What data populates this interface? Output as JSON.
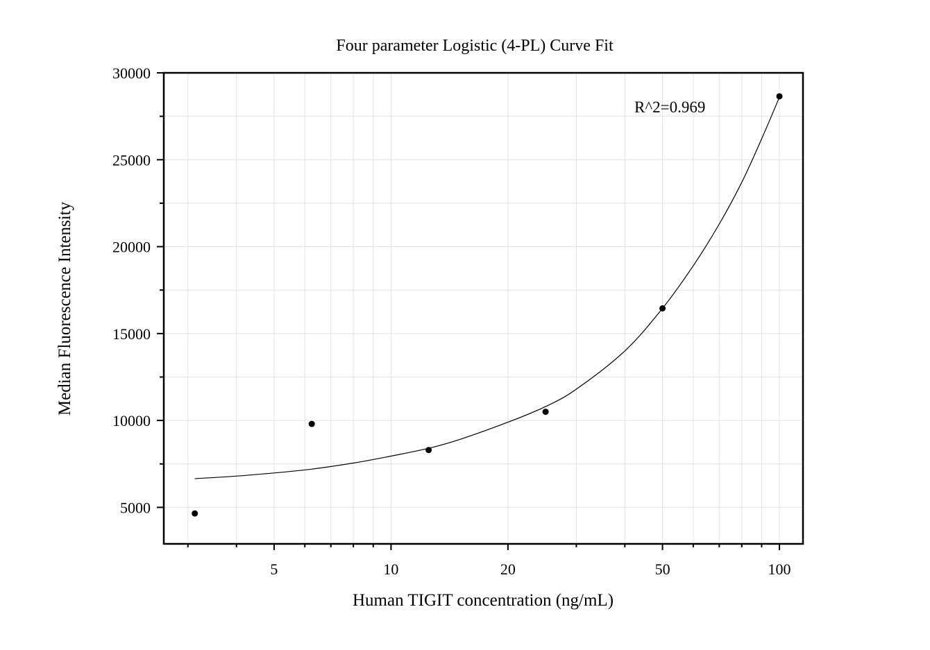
{
  "chart_data": {
    "type": "scatter",
    "title": "Four parameter Logistic (4-PL) Curve Fit",
    "xlabel": "Human TIGIT concentration (ng/mL)",
    "ylabel": "Median Fluorescence Intensity",
    "x_scale": "log",
    "xlim": [
      2.6,
      115
    ],
    "ylim": [
      2900,
      30000
    ],
    "x_major_ticks": [
      5,
      10,
      20,
      50,
      100
    ],
    "x_minor_ticks": [
      3,
      4,
      6,
      7,
      8,
      9,
      30,
      40,
      60,
      70,
      80,
      90
    ],
    "y_major_ticks": [
      5000,
      10000,
      15000,
      20000,
      25000,
      30000
    ],
    "y_minor_ticks": [
      7500,
      12500,
      17500,
      22500,
      27500
    ],
    "x_tick_labels": [
      "5",
      "10",
      "20",
      "50",
      "100"
    ],
    "y_tick_labels": [
      "5000",
      "10000",
      "15000",
      "20000",
      "25000",
      "30000"
    ],
    "grid": true,
    "annotation": "R^2=0.969",
    "points": {
      "x": [
        3.125,
        6.25,
        12.5,
        25,
        50,
        100
      ],
      "y": [
        4650,
        9800,
        8300,
        10500,
        16450,
        28650
      ]
    },
    "fit_curve": {
      "x": [
        3.125,
        4,
        5,
        6.25,
        8,
        10,
        12.5,
        15,
        20,
        25,
        30,
        40,
        50,
        60,
        70,
        80,
        90,
        100
      ],
      "y": [
        6650,
        6800,
        6980,
        7200,
        7550,
        7950,
        8400,
        8900,
        9900,
        10800,
        11800,
        14000,
        16450,
        18900,
        21300,
        23700,
        26200,
        28600
      ]
    }
  }
}
